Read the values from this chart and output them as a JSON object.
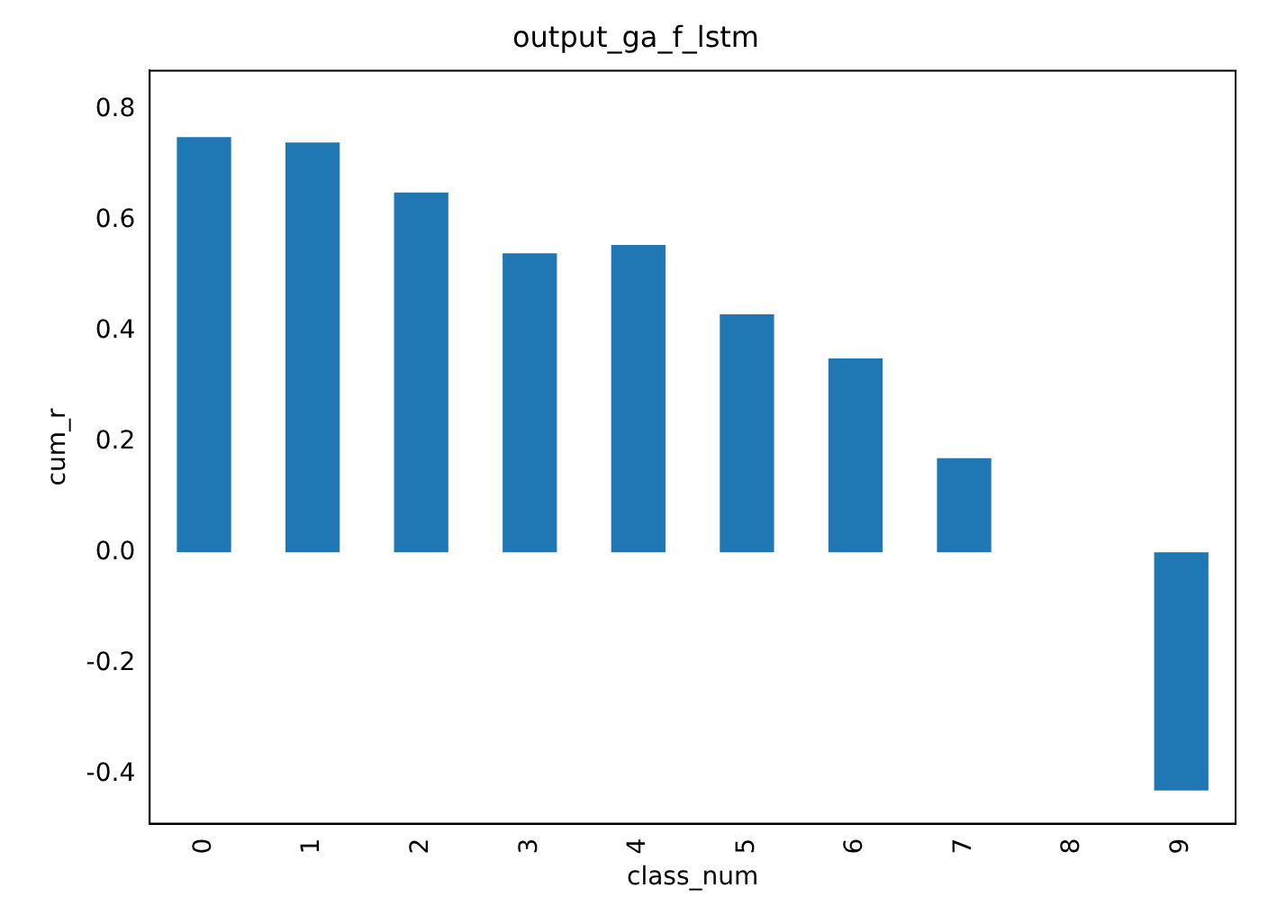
{
  "chart_data": {
    "type": "bar",
    "title": "output_ga_f_lstm",
    "xlabel": "class_num",
    "ylabel": "cum_r",
    "categories": [
      "0",
      "1",
      "2",
      "3",
      "4",
      "5",
      "6",
      "7",
      "8",
      "9"
    ],
    "values": [
      0.75,
      0.74,
      0.65,
      0.54,
      0.555,
      0.43,
      0.35,
      0.17,
      null,
      -0.43
    ],
    "color": "#1f77b4",
    "ylim": [
      -0.49,
      0.87
    ],
    "yticks": [
      -0.4,
      -0.2,
      {
        "value": 0,
        "label": "0.0"
      },
      0.2,
      0.4,
      0.6,
      0.8
    ],
    "grid": false,
    "legend": false
  }
}
